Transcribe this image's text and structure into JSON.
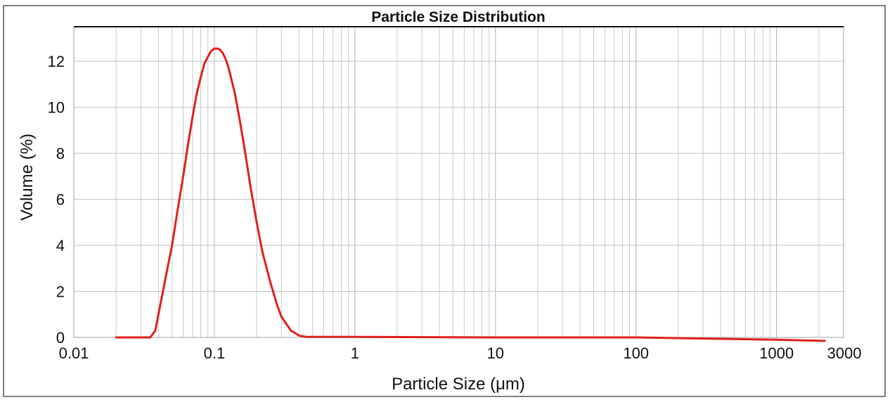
{
  "chart_data": {
    "type": "line",
    "title": "Particle Size Distribution",
    "xlabel": "Particle Size (μm)",
    "ylabel": "Volume (%)",
    "x_scale": "log",
    "xlim": [
      0.01,
      3000
    ],
    "ylim": [
      0,
      13.5
    ],
    "x_ticks": [
      {
        "value": 0.01,
        "label": "0.01"
      },
      {
        "value": 0.1,
        "label": "0.1"
      },
      {
        "value": 1,
        "label": "1"
      },
      {
        "value": 10,
        "label": "10"
      },
      {
        "value": 100,
        "label": "100"
      },
      {
        "value": 1000,
        "label": "1000"
      },
      {
        "value": 3000,
        "label": "3000"
      }
    ],
    "y_ticks": [
      {
        "value": 0,
        "label": "0"
      },
      {
        "value": 2,
        "label": "2"
      },
      {
        "value": 4,
        "label": "4"
      },
      {
        "value": 6,
        "label": "6"
      },
      {
        "value": 8,
        "label": "8"
      },
      {
        "value": 10,
        "label": "10"
      },
      {
        "value": 12,
        "label": "12"
      }
    ],
    "grid": true,
    "line_color": "#e0201b",
    "series": [
      {
        "x": [
          0.02,
          0.03,
          0.035,
          0.038,
          0.04,
          0.045,
          0.05,
          0.055,
          0.06,
          0.065,
          0.07,
          0.075,
          0.08,
          0.085,
          0.09,
          0.095,
          0.1,
          0.105,
          0.11,
          0.115,
          0.12,
          0.125,
          0.13,
          0.14,
          0.15,
          0.16,
          0.17,
          0.18,
          0.2,
          0.22,
          0.25,
          0.28,
          0.3,
          0.35,
          0.4,
          0.45,
          0.5,
          1,
          10,
          100,
          1000,
          2200
        ],
        "y": [
          0,
          0,
          0,
          0.3,
          1,
          2.6,
          4.0,
          5.6,
          7.0,
          8.4,
          9.6,
          10.6,
          11.3,
          11.9,
          12.2,
          12.45,
          12.55,
          12.55,
          12.5,
          12.35,
          12.1,
          11.8,
          11.4,
          10.6,
          9.6,
          8.6,
          7.6,
          6.6,
          5.0,
          3.7,
          2.4,
          1.4,
          0.9,
          0.3,
          0.08,
          0.02,
          0.02,
          0.02,
          0,
          0,
          -0.1,
          -0.15
        ]
      }
    ]
  }
}
